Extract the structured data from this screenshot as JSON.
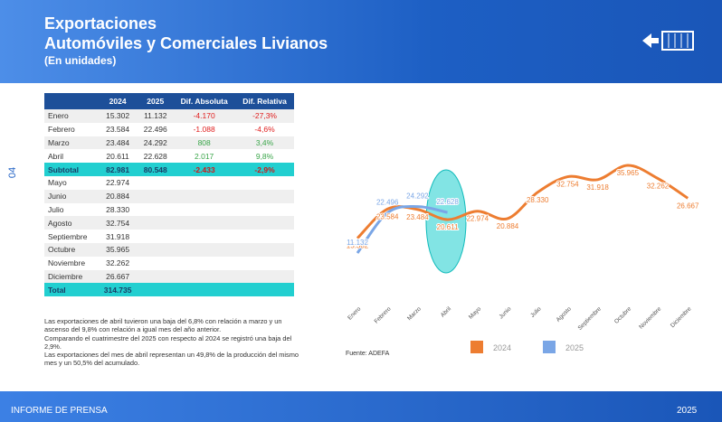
{
  "header": {
    "title": "Exportaciones",
    "subtitle": "Automóviles y Comerciales Livianos",
    "unit": "(En unidades)"
  },
  "page_number": "04",
  "table": {
    "columns": [
      "",
      "2024",
      "2025",
      "Dif. Absoluta",
      "Dif. Relativa"
    ],
    "rows": [
      [
        "Enero",
        "15.302",
        "11.132",
        "-4.170",
        "-27,3%"
      ],
      [
        "Febrero",
        "23.584",
        "22.496",
        "-1.088",
        "-4,6%"
      ],
      [
        "Marzo",
        "23.484",
        "24.292",
        "808",
        "3,4%"
      ],
      [
        "Abril",
        "20.611",
        "22.628",
        "2.017",
        "9,8%"
      ],
      [
        "Subtotal",
        "82.981",
        "80.548",
        "-2.433",
        "-2,9%"
      ],
      [
        "Mayo",
        "22.974",
        "",
        "",
        ""
      ],
      [
        "Junio",
        "20.884",
        "",
        "",
        ""
      ],
      [
        "Julio",
        "28.330",
        "",
        "",
        ""
      ],
      [
        "Agosto",
        "32.754",
        "",
        "",
        ""
      ],
      [
        "Septiembre",
        "31.918",
        "",
        "",
        ""
      ],
      [
        "Octubre",
        "35.965",
        "",
        "",
        ""
      ],
      [
        "Noviembre",
        "32.262",
        "",
        "",
        ""
      ],
      [
        "Diciembre",
        "26.667",
        "",
        "",
        ""
      ],
      [
        "Total",
        "314.735",
        "",
        "",
        ""
      ]
    ]
  },
  "notes": [
    "Las exportaciones de abril tuvieron una baja del 6,8% con relación a marzo y un ascenso del 9,8% con relación a igual mes del año anterior.",
    "Comparando el cuatrimestre del 2025 con respecto al 2024 se registró una baja del 2,9%.",
    "Las exportaciones del mes de abril representan un 49,8% de la producción del mismo mes y un 50,5% del acumulado."
  ],
  "chart_data": {
    "type": "line",
    "categories": [
      "Enero",
      "Febrero",
      "Marzo",
      "Abril",
      "Mayo",
      "Junio",
      "Julio",
      "Agosto",
      "Septiembre",
      "Octubre",
      "Noviembre",
      "Diciembre"
    ],
    "series": [
      {
        "name": "2024",
        "color": "#ed7d31",
        "values": [
          15302,
          23584,
          23484,
          20611,
          22974,
          20884,
          28330,
          32754,
          31918,
          35965,
          32262,
          26667
        ],
        "value_labels": [
          "15.302",
          "23.584",
          "23.484",
          "20.611",
          "22.974",
          "20.884",
          "28.330",
          "32.754",
          "31.918",
          "35.965",
          "32.262",
          "26.667"
        ]
      },
      {
        "name": "2025",
        "color": "#7aa6e6",
        "values": [
          11132,
          22496,
          24292,
          22628,
          null,
          null,
          null,
          null,
          null,
          null,
          null,
          null
        ],
        "value_labels": [
          "11.132",
          "22.496",
          "24.292",
          "22.628",
          null,
          null,
          null,
          null,
          null,
          null,
          null,
          null
        ]
      }
    ],
    "source": "Fuente: ADEFA"
  },
  "footer": {
    "left": "INFORME DE PRENSA",
    "right": "2025"
  }
}
